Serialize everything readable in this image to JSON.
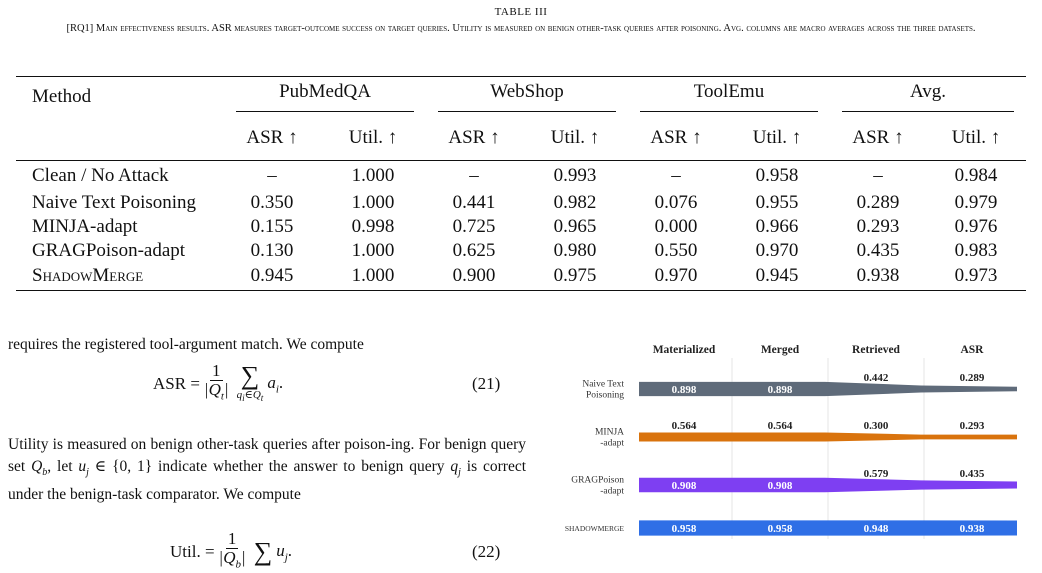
{
  "caption": {
    "label": "TABLE III",
    "text": "[RQ1] Main effectiveness results. ASR measures target-outcome success on target queries. Utility is measured on benign other-task queries after poisoning. Avg. columns are macro averages across the three datasets."
  },
  "table": {
    "method_header": "Method",
    "groups": [
      "PubMedQA",
      "WebShop",
      "ToolEmu",
      "Avg."
    ],
    "subheaders": [
      "ASR ↑",
      "Util. ↑"
    ],
    "rows": [
      {
        "method": "Clean / No Attack",
        "values": [
          "–",
          "1.000",
          "–",
          "0.993",
          "–",
          "0.958",
          "–",
          "0.984"
        ]
      },
      {
        "method": "Naive Text Poisoning",
        "values": [
          "0.350",
          "1.000",
          "0.441",
          "0.982",
          "0.076",
          "0.955",
          "0.289",
          "0.979"
        ]
      },
      {
        "method": "MINJA-adapt",
        "values": [
          "0.155",
          "0.998",
          "0.725",
          "0.965",
          "0.000",
          "0.966",
          "0.293",
          "0.976"
        ]
      },
      {
        "method": "GRAGPoison-adapt",
        "values": [
          "0.130",
          "1.000",
          "0.625",
          "0.980",
          "0.550",
          "0.970",
          "0.435",
          "0.983"
        ]
      },
      {
        "method": "ShadowMerge",
        "values": [
          "0.945",
          "1.000",
          "0.900",
          "0.975",
          "0.970",
          "0.945",
          "0.938",
          "0.973"
        ]
      }
    ]
  },
  "text": {
    "p1": "requires the registered tool-argument match. We compute",
    "eq21": "(21)",
    "p2a": "Utility is measured on benign other-task queries after poison-ing. For benign query set ",
    "p2b": ", let ",
    "p2c": " indicate whether the answer to benign query ",
    "p2d": " is correct under the benign-task comparator. We compute",
    "eq22": "(22)"
  },
  "chart_data": {
    "type": "funnel",
    "stages": [
      "Materialized",
      "Merged",
      "Retrieved",
      "ASR"
    ],
    "series": [
      {
        "name": "Naive Text Poisoning",
        "values": [
          0.898,
          0.898,
          0.442,
          0.289
        ],
        "color": "#5f6b7a"
      },
      {
        "name": "MINJA -adapt",
        "values": [
          0.564,
          0.564,
          0.3,
          0.293
        ],
        "color": "#d9730d"
      },
      {
        "name": "GRAGPoison -adapt",
        "values": [
          0.908,
          0.908,
          0.579,
          0.435
        ],
        "color": "#7e3ff2"
      },
      {
        "name": "ShadowMerge",
        "values": [
          0.958,
          0.958,
          0.948,
          0.938
        ],
        "color": "#2f6fe6"
      }
    ],
    "series_labels": [
      [
        "Naive Text",
        "Poisoning"
      ],
      [
        "MINJA",
        "-adapt"
      ],
      [
        "GRAGPoison",
        "-adapt"
      ],
      [
        "ShadowMerge"
      ]
    ]
  }
}
